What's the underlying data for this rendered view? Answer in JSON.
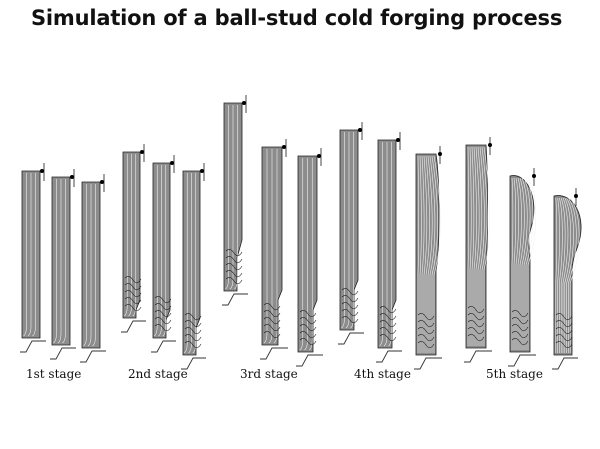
{
  "title": "Simulation of a ball-stud cold forging process",
  "stages": [
    {
      "label": "1st stage"
    },
    {
      "label": "2nd stage"
    },
    {
      "label": "3rd stage"
    },
    {
      "label": "4th stage"
    },
    {
      "label": "5th stage"
    }
  ],
  "colors": {
    "billet": "#8c8c8c",
    "outline": "#222222",
    "flow_lines": "#f2f2f2",
    "tool_contour": "#333333"
  }
}
